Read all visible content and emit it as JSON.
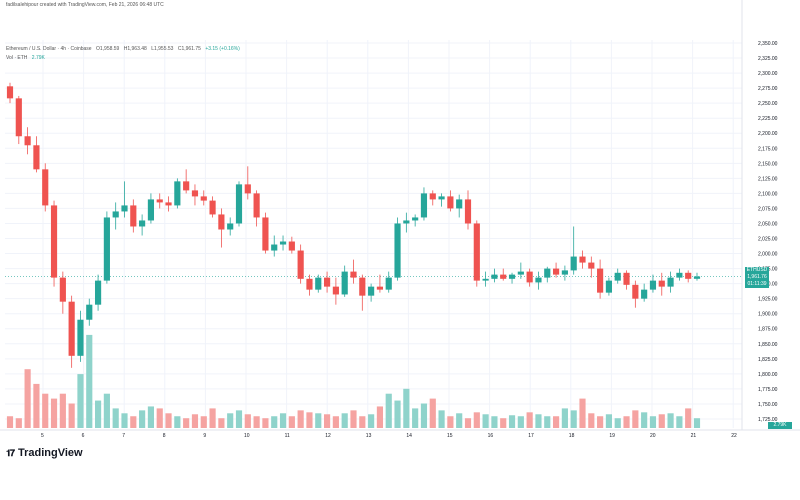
{
  "header": {
    "credit": "fadilsalehipour created with TradingView.com, Feb 21, 2026 06:48 UTC",
    "symbol": "Ethereum / U.S. Dollar · 4h · Coinbase",
    "ohlc": [
      "O1,958.59",
      "H1,963.48",
      "L1,955.53",
      "C1,961.75",
      "+3.15 (+0.16%)"
    ],
    "volume_label": "Vol · ETH",
    "volume_value": "2.79K"
  },
  "price_tag": {
    "symbol": "ETHUSD",
    "price": "1,961.76",
    "timer": "01:11:39"
  },
  "volume_tag": "2.79K",
  "branding": "TradingView",
  "colors": {
    "up": "#26a69a",
    "down": "#ef5350",
    "vol_up": "#8fd3cb",
    "vol_down": "#f5a3a1",
    "grid": "#f0f3fa",
    "text": "#131722"
  },
  "chart_data": {
    "type": "candlestick",
    "y_axis_ticks": [
      "2,350.00",
      "2,325.00",
      "2,300.00",
      "2,275.00",
      "2,250.00",
      "2,225.00",
      "2,200.00",
      "2,175.00",
      "2,150.00",
      "2,125.00",
      "2,100.00",
      "2,075.00",
      "2,050.00",
      "2,025.00",
      "2,000.00",
      "1,975.00",
      "1,950.00",
      "1,925.00",
      "1,900.00",
      "1,875.00",
      "1,850.00",
      "1,825.00",
      "1,800.00",
      "1,775.00",
      "1,750.00",
      "1,725.00"
    ],
    "ylim": [
      1710,
      2355
    ],
    "x_ticks": [
      "5",
      "6",
      "7",
      "8",
      "9",
      "10",
      "11",
      "12",
      "13",
      "14",
      "15",
      "16",
      "17",
      "18",
      "19",
      "20",
      "21",
      "22"
    ],
    "current_price": 1961.76,
    "candles": [
      [
        2278,
        2284,
        2250,
        2258
      ],
      [
        2258,
        2262,
        2182,
        2195
      ],
      [
        2195,
        2210,
        2165,
        2180
      ],
      [
        2180,
        2195,
        2135,
        2140
      ],
      [
        2140,
        2150,
        2070,
        2080
      ],
      [
        2080,
        2088,
        1945,
        1960
      ],
      [
        1960,
        1970,
        1900,
        1920
      ],
      [
        1920,
        1930,
        1810,
        1830
      ],
      [
        1830,
        1905,
        1820,
        1890
      ],
      [
        1890,
        1925,
        1880,
        1915
      ],
      [
        1915,
        1965,
        1905,
        1955
      ],
      [
        1955,
        2070,
        1950,
        2060
      ],
      [
        2060,
        2085,
        2040,
        2070
      ],
      [
        2070,
        2120,
        2060,
        2080
      ],
      [
        2080,
        2090,
        2035,
        2045
      ],
      [
        2045,
        2065,
        2030,
        2055
      ],
      [
        2055,
        2100,
        2050,
        2090
      ],
      [
        2090,
        2100,
        2075,
        2085
      ],
      [
        2085,
        2095,
        2070,
        2080
      ],
      [
        2080,
        2125,
        2075,
        2120
      ],
      [
        2120,
        2140,
        2100,
        2105
      ],
      [
        2105,
        2115,
        2080,
        2095
      ],
      [
        2095,
        2105,
        2080,
        2088
      ],
      [
        2088,
        2095,
        2060,
        2065
      ],
      [
        2065,
        2075,
        2010,
        2040
      ],
      [
        2040,
        2060,
        2030,
        2050
      ],
      [
        2050,
        2120,
        2045,
        2115
      ],
      [
        2115,
        2145,
        2090,
        2100
      ],
      [
        2100,
        2105,
        2045,
        2060
      ],
      [
        2060,
        2068,
        2000,
        2005
      ],
      [
        2005,
        2030,
        1995,
        2015
      ],
      [
        2015,
        2030,
        2005,
        2020
      ],
      [
        2020,
        2028,
        2000,
        2005
      ],
      [
        2005,
        2015,
        1950,
        1958
      ],
      [
        1958,
        1965,
        1930,
        1940
      ],
      [
        1940,
        1965,
        1935,
        1960
      ],
      [
        1960,
        1970,
        1935,
        1945
      ],
      [
        1945,
        1960,
        1915,
        1932
      ],
      [
        1932,
        1980,
        1928,
        1970
      ],
      [
        1970,
        1990,
        1950,
        1960
      ],
      [
        1960,
        1965,
        1905,
        1930
      ],
      [
        1930,
        1950,
        1920,
        1945
      ],
      [
        1945,
        1965,
        1935,
        1940
      ],
      [
        1940,
        1970,
        1935,
        1960
      ],
      [
        1960,
        2060,
        1955,
        2050
      ],
      [
        2050,
        2068,
        2035,
        2055
      ],
      [
        2055,
        2065,
        2045,
        2060
      ],
      [
        2060,
        2110,
        2055,
        2100
      ],
      [
        2100,
        2105,
        2080,
        2090
      ],
      [
        2090,
        2100,
        2078,
        2095
      ],
      [
        2095,
        2105,
        2070,
        2075
      ],
      [
        2075,
        2098,
        2060,
        2090
      ],
      [
        2090,
        2105,
        2040,
        2050
      ],
      [
        2050,
        2055,
        1945,
        1955
      ],
      [
        1955,
        1970,
        1945,
        1958
      ],
      [
        1958,
        1975,
        1952,
        1965
      ],
      [
        1965,
        1975,
        1955,
        1958
      ],
      [
        1958,
        1968,
        1950,
        1965
      ],
      [
        1965,
        1985,
        1958,
        1970
      ],
      [
        1970,
        1975,
        1945,
        1952
      ],
      [
        1952,
        1970,
        1940,
        1960
      ],
      [
        1960,
        1978,
        1952,
        1975
      ],
      [
        1975,
        1985,
        1960,
        1965
      ],
      [
        1965,
        1980,
        1955,
        1972
      ],
      [
        1972,
        2045,
        1965,
        1995
      ],
      [
        1995,
        2005,
        1975,
        1985
      ],
      [
        1985,
        1995,
        1960,
        1975
      ],
      [
        1975,
        1990,
        1925,
        1935
      ],
      [
        1935,
        1960,
        1930,
        1955
      ],
      [
        1955,
        1975,
        1950,
        1968
      ],
      [
        1968,
        1972,
        1940,
        1948
      ],
      [
        1948,
        1955,
        1910,
        1925
      ],
      [
        1925,
        1950,
        1920,
        1940
      ],
      [
        1940,
        1965,
        1935,
        1955
      ],
      [
        1955,
        1968,
        1930,
        1945
      ],
      [
        1945,
        1970,
        1935,
        1960
      ],
      [
        1960,
        1975,
        1955,
        1968
      ],
      [
        1968,
        1972,
        1952,
        1958
      ],
      [
        1958,
        1968,
        1955,
        1962
      ]
    ],
    "volumes": [
      12,
      10,
      60,
      45,
      35,
      30,
      35,
      25,
      55,
      95,
      28,
      35,
      20,
      15,
      12,
      18,
      22,
      20,
      15,
      12,
      10,
      14,
      12,
      20,
      10,
      15,
      18,
      14,
      12,
      10,
      12,
      15,
      12,
      18,
      16,
      15,
      14,
      12,
      15,
      18,
      12,
      14,
      22,
      35,
      28,
      40,
      20,
      25,
      30,
      18,
      12,
      15,
      10,
      16,
      14,
      12,
      10,
      13,
      12,
      16,
      14,
      12,
      12,
      20,
      18,
      30,
      15,
      12,
      14,
      10,
      12,
      18,
      16,
      12,
      14,
      15,
      12,
      20,
      10
    ],
    "volume_ylim": [
      0,
      100
    ]
  }
}
